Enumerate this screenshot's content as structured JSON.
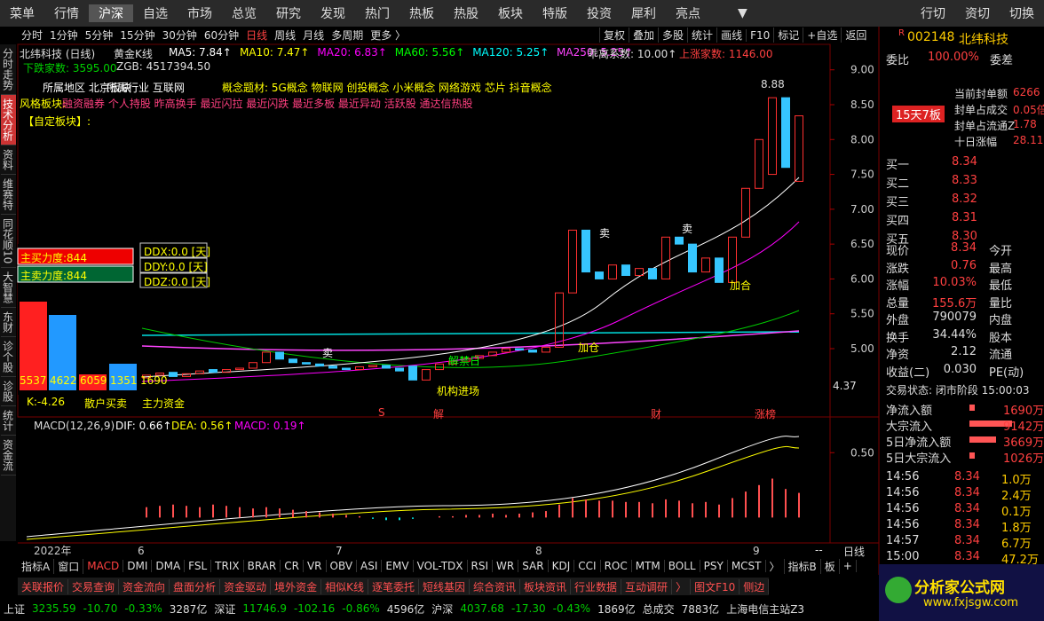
{
  "menu": {
    "left": [
      "菜单",
      "行情",
      "沪深",
      "自选",
      "市场",
      "总览",
      "研究",
      "发现",
      "热门",
      "热板",
      "热股",
      "板块",
      "特版",
      "投资",
      "犀利",
      "亮点"
    ],
    "active": "沪深",
    "arrow": "▼",
    "right": [
      "行切",
      "资切",
      "切换"
    ]
  },
  "toolbar": {
    "left": [
      "分时",
      "1分钟",
      "5分钟",
      "15分钟",
      "30分钟",
      "60分钟",
      "日线",
      "周线",
      "月线",
      "多周期",
      "更多 〉"
    ],
    "active": "日线",
    "right": [
      "复权",
      "叠加",
      "多股",
      "统计",
      "画线",
      "F10",
      "标记",
      "+自选",
      "返回"
    ]
  },
  "side_tabs": [
    "分时走势",
    "技术分析",
    "资料",
    "维赛特",
    "同花顺10",
    "大智慧",
    "东财",
    "诊个股",
    "诊股",
    "统计",
    "资金流"
  ],
  "header": {
    "name": "北纬科技 (日线)",
    "formula": "黄金K线",
    "ma": [
      {
        "text": "MA5: 7.84↑",
        "color": "#ffffff"
      },
      {
        "text": "MA10: 7.47↑",
        "color": "#ffff00"
      },
      {
        "text": "MA20: 6.83↑",
        "color": "#ff00ff"
      },
      {
        "text": "MA60: 5.56↑",
        "color": "#00ff00"
      },
      {
        "text": "MA120: 5.25↑",
        "color": "#00ffff"
      },
      {
        "text": "MA250: 5.25↑",
        "color": "#ff44ff"
      }
    ],
    "bias": "乖离系数: 10.00↑",
    "up_count": "上涨家数: 1146.00",
    "down_count": "下跌家数: 3595.00",
    "zgb": "ZGB: 4517394.50"
  },
  "concepts": {
    "region": "所属地区 北京板块",
    "industry": "所属行业 互联网",
    "themes": "概念题材: 5G概念 物联网 创投概念 小米概念 网络游戏 芯片 抖音概念",
    "style_label": "风格板块:",
    "style": "融资融券 个人持股 昨高换手 最近闪拉 最近闪跌 最近多板 最近异动 活跃股 通达信热股",
    "custom": "【自定板块】:"
  },
  "overlay": {
    "buy": "主买力度:844",
    "sell": "主卖力度:844",
    "ddx": "DDX:0.0 [天]",
    "ddy": "DDY:0.0 [天]",
    "ddz": "DDZ:0.0 [天]",
    "bar_labels": [
      "5537",
      "4622",
      "6059",
      "1351",
      "1690"
    ],
    "retail": "散户买卖",
    "main": "主力资金",
    "k": "K:-4.26"
  },
  "annotations": {
    "sell": [
      "卖",
      "卖",
      "卖"
    ],
    "add": [
      "加仓",
      "加合"
    ],
    "unlock": "解禁日",
    "inst": "机构进场",
    "high": "8.88",
    "low": "4.37",
    "events": [
      "S",
      "解",
      "财",
      "涨榜"
    ]
  },
  "chart_data": {
    "type": "candlestick",
    "open": [
      4.58,
      4.62,
      4.66,
      4.6,
      4.64,
      4.7,
      4.66,
      4.7,
      4.72,
      4.8,
      4.95,
      4.85,
      4.8,
      4.78,
      4.75,
      4.72,
      4.7,
      4.74,
      4.76,
      4.72,
      4.75,
      4.55,
      4.7,
      4.78,
      4.82,
      4.86,
      4.9,
      4.95,
      5.0,
      4.98,
      4.95,
      5.02,
      5.8,
      6.7,
      6.1,
      6.0,
      6.2,
      6.05,
      6.15,
      6.0,
      6.6,
      6.5,
      6.1,
      6.3,
      5.95,
      6.6,
      7.3,
      7.5,
      8.6,
      7.4
    ],
    "close": [
      4.62,
      4.65,
      4.6,
      4.64,
      4.68,
      4.66,
      4.7,
      4.72,
      4.8,
      4.95,
      4.85,
      4.8,
      4.78,
      4.75,
      4.72,
      4.7,
      4.74,
      4.76,
      4.72,
      4.68,
      4.55,
      4.7,
      4.78,
      4.82,
      4.86,
      4.9,
      4.95,
      5.0,
      4.98,
      4.95,
      5.02,
      5.8,
      6.7,
      6.1,
      6.0,
      6.2,
      6.05,
      6.15,
      6.0,
      6.6,
      6.5,
      6.1,
      6.3,
      5.95,
      6.6,
      7.3,
      8.0,
      8.6,
      7.6,
      8.34
    ],
    "up_color": "#ff3030",
    "down_color": "#36c6ff",
    "ylim": [
      4.3,
      9.2
    ],
    "yticks": [
      {
        "value": 9,
        "label": "9.00"
      },
      {
        "value": 8.5,
        "label": "8.50"
      },
      {
        "value": 8,
        "label": "8.00"
      },
      {
        "value": 7.5,
        "label": "7.50"
      },
      {
        "value": 7,
        "label": "7.00"
      },
      {
        "value": 6.5,
        "label": "6.50"
      },
      {
        "value": 6,
        "label": "6.00"
      },
      {
        "value": 5.5,
        "label": "5.50"
      },
      {
        "value": 5,
        "label": "5.00"
      }
    ],
    "categories": [
      "2022年",
      "6",
      "7",
      "8",
      "9"
    ]
  },
  "macd": {
    "type": "bar",
    "title": "MACD(12,26,9)",
    "dif": "DIF: 0.66↑",
    "dea": "DEA: 0.56↑",
    "macd": "MACD: 0.19↑",
    "values": [
      0.08,
      0.09,
      0.1,
      0.09,
      0.08,
      0.1,
      0.09,
      0.08,
      0.07,
      0.08,
      0.07,
      0.06,
      0.05,
      0.04,
      0.03,
      0.02,
      0.01,
      -0.01,
      -0.02,
      -0.02,
      -0.01,
      0.0,
      0.01,
      0.01,
      0.02,
      0.02,
      0.03,
      0.02,
      0.03,
      0.04,
      0.05,
      0.1,
      0.15,
      0.14,
      0.13,
      0.13,
      0.12,
      0.12,
      0.11,
      0.14,
      0.13,
      0.11,
      0.12,
      0.1,
      0.15,
      0.2,
      0.25,
      0.3,
      0.22,
      0.19
    ],
    "color": "#ff5050",
    "neg_color": "#00e0e0",
    "ylim": [
      -0.1,
      0.7
    ],
    "yticks": [
      {
        "value": 0.5,
        "label": "0.50"
      }
    ]
  },
  "axis_extra": {
    "dash": "--",
    "period": "日线"
  },
  "indicator_tabs": [
    "指标A",
    "窗口",
    "MACD",
    "DMI",
    "DMA",
    "FSL",
    "TRIX",
    "BRAR",
    "CR",
    "VR",
    "OBV",
    "ASI",
    "EMV",
    "VOL-TDX",
    "RSI",
    "WR",
    "SAR",
    "KDJ",
    "CCI",
    "ROC",
    "MTM",
    "BOLL",
    "PSY",
    "MCST",
    "〉",
    "指标B",
    "板",
    "+"
  ],
  "function_tabs": [
    "关联报价",
    "交易查询",
    "资金流向",
    "盘面分析",
    "资金驱动",
    "境外资金",
    "相似K线",
    "逐笔委托",
    "短线基因",
    "综合资讯",
    "板块资讯",
    "行业数据",
    "互动调研",
    "〉",
    "图文F10",
    "侧边"
  ],
  "status": [
    {
      "t": "上证",
      "c": "#ddd"
    },
    {
      "t": "3235.59",
      "c": "#00d000"
    },
    {
      "t": "-10.70",
      "c": "#00d000"
    },
    {
      "t": "-0.33%",
      "c": "#00d000"
    },
    {
      "t": "3287亿",
      "c": "#ddd"
    },
    {
      "t": "深证",
      "c": "#ddd"
    },
    {
      "t": "11746.9",
      "c": "#00d000"
    },
    {
      "t": "-102.16",
      "c": "#00d000"
    },
    {
      "t": "-0.86%",
      "c": "#00d000"
    },
    {
      "t": "4596亿",
      "c": "#ddd"
    },
    {
      "t": "沪深",
      "c": "#ddd"
    },
    {
      "t": "4037.68",
      "c": "#00d000"
    },
    {
      "t": "-17.30",
      "c": "#00d000"
    },
    {
      "t": "-0.43%",
      "c": "#00d000"
    },
    {
      "t": "1869亿",
      "c": "#ddd"
    },
    {
      "t": "总成交",
      "c": "#ddd"
    },
    {
      "t": "7883亿",
      "c": "#ddd"
    },
    {
      "t": "上海电信主站Z3",
      "c": "#ddd"
    }
  ],
  "quote": {
    "mark": "R",
    "code": "002148",
    "name": "北纬科技",
    "wb_label": "委比",
    "wb": "100.00%",
    "wc_label": "委差",
    "seal": [
      [
        "当前封单额",
        "6266"
      ],
      [
        "封单占成交",
        "0.05倍"
      ],
      [
        "封单占流通Z",
        "1.78"
      ],
      [
        "十日涨幅",
        "28.11"
      ]
    ],
    "boards": "15天7板",
    "book": [
      [
        "买一",
        "8.34"
      ],
      [
        "买二",
        "8.33"
      ],
      [
        "买三",
        "8.32"
      ],
      [
        "买四",
        "8.31"
      ],
      [
        "买五",
        "8.30"
      ]
    ],
    "stats": [
      [
        "现价",
        "8.34",
        "今开"
      ],
      [
        "涨跌",
        "0.76",
        "最高"
      ],
      [
        "涨幅",
        "10.03%",
        "最低"
      ],
      [
        "总量",
        "155.6万",
        "量比"
      ],
      [
        "外盘",
        "790079",
        "内盘"
      ],
      [
        "换手",
        "34.44%",
        "股本"
      ],
      [
        "净资",
        "2.12",
        "流通"
      ],
      [
        "收益(二)",
        "0.030",
        "PE(动)"
      ]
    ],
    "state": "交易状态: 闭市阶段 15:00:03",
    "flow": [
      [
        "净流入额",
        "1690万"
      ],
      [
        "大宗流入",
        "9142万"
      ],
      [
        "5日净流入额",
        "3669万"
      ],
      [
        "5日大宗流入",
        "1026万"
      ]
    ],
    "trades": [
      [
        "14:56",
        "8.34",
        "1.0万"
      ],
      [
        "14:56",
        "8.34",
        "2.4万"
      ],
      [
        "14:56",
        "8.34",
        "0.1万"
      ],
      [
        "14:56",
        "8.34",
        "1.8万"
      ],
      [
        "14:57",
        "8.34",
        "6.7万"
      ],
      [
        "15:00",
        "8.34",
        "47.2万"
      ]
    ]
  },
  "logo": {
    "name": "分析家公式网",
    "url": "www.fxjsgw.com"
  }
}
